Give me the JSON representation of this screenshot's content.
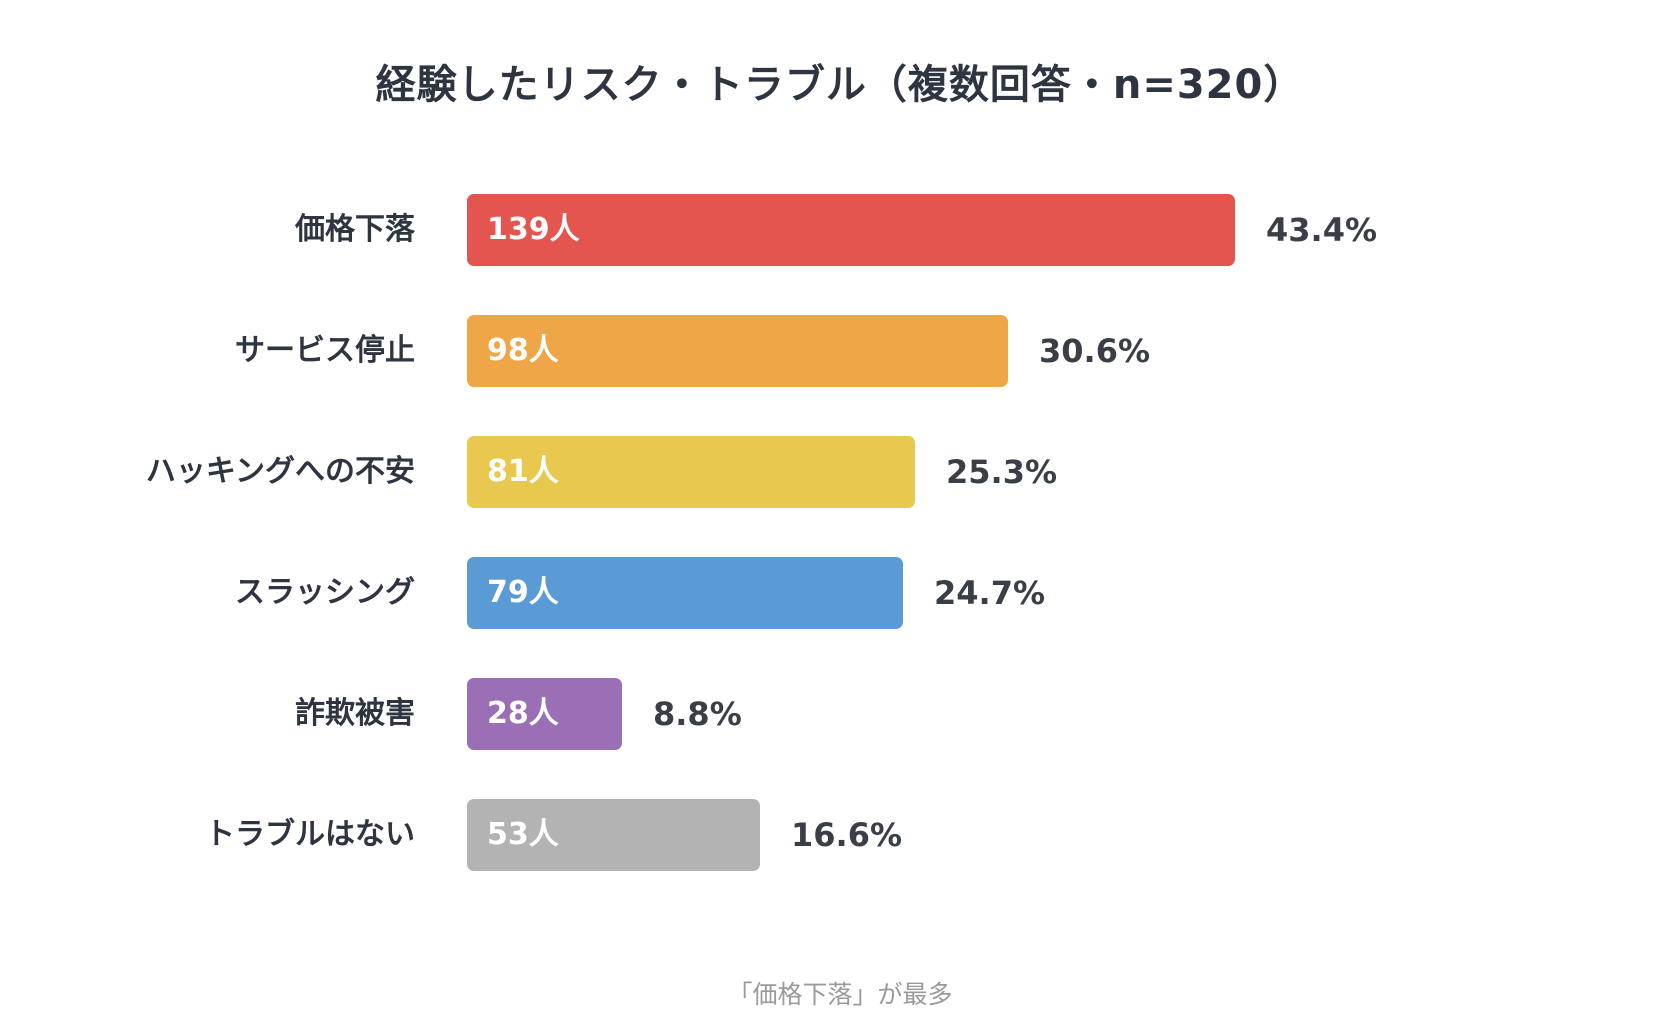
{
  "chart_data": {
    "type": "bar",
    "orientation": "horizontal",
    "title": "経験したリスク・トラブル（複数回答・n=320）",
    "categories": [
      "価格下落",
      "サービス停止",
      "ハッキングへの不安",
      "スラッシング",
      "詐欺被害",
      "トラブルはない"
    ],
    "values": [
      139,
      98,
      81,
      79,
      28,
      53
    ],
    "value_labels": [
      "139人",
      "98人",
      "81人",
      "79人",
      "28人",
      "53人"
    ],
    "percent_labels": [
      "43.4%",
      "30.6%",
      "25.3%",
      "24.7%",
      "8.8%",
      "16.6%"
    ],
    "colors": [
      "#e5554f",
      "#eea646",
      "#e8c84f",
      "#5b9bd5",
      "#9b6fb5",
      "#b3b3b3"
    ],
    "xlim": [
      0,
      139
    ],
    "grid": false,
    "legend": "none",
    "annotation": "「価格下落」が最多"
  }
}
